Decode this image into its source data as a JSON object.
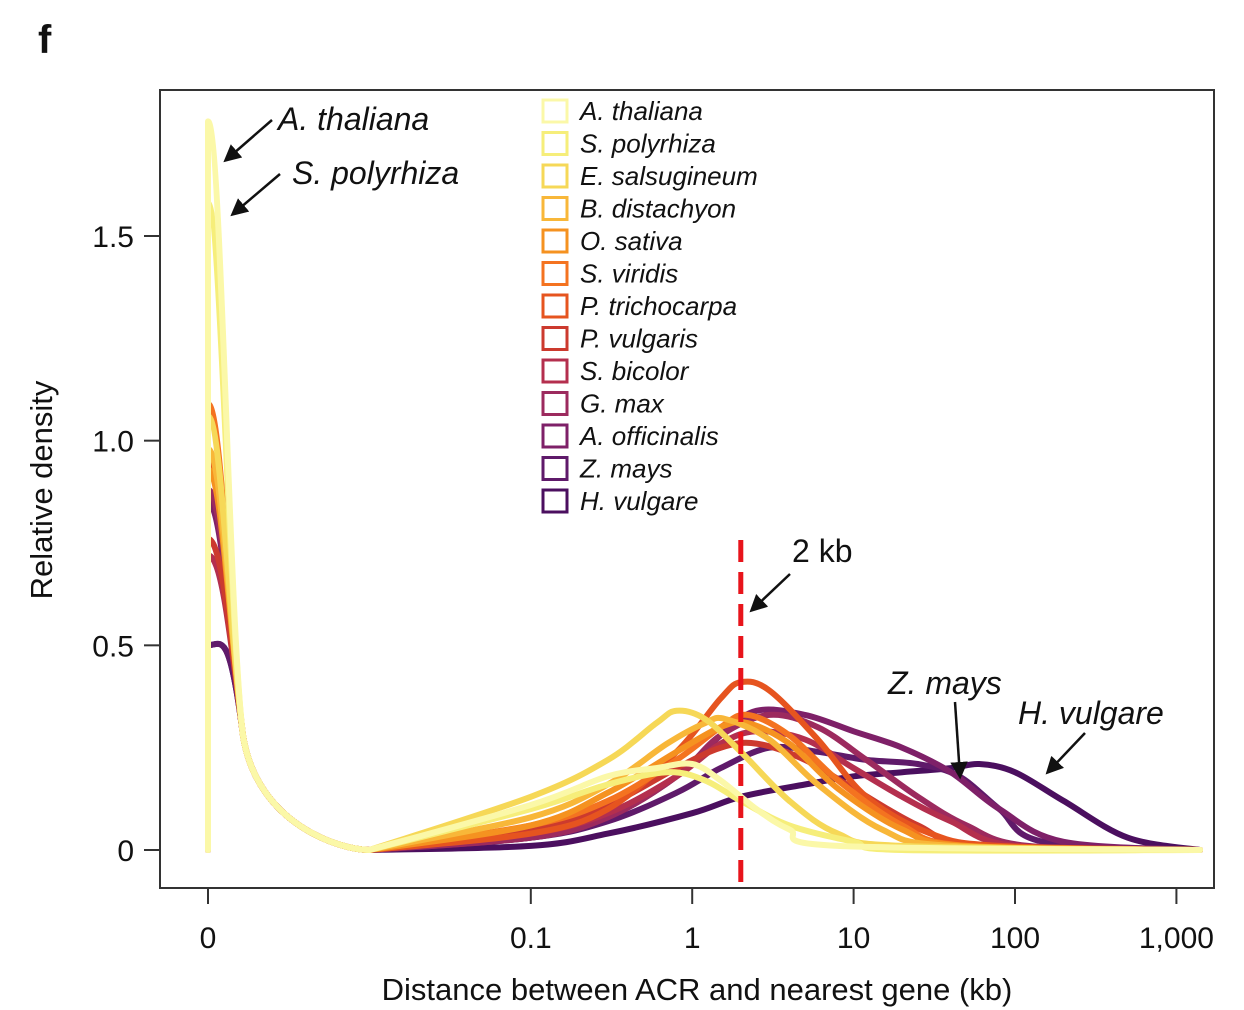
{
  "panel_label": "f",
  "chart_data": {
    "type": "line",
    "title": "",
    "xlabel": "Distance between ACR and nearest gene (kb)",
    "ylabel": "Relative density",
    "x_scale": "log, with 0 shown at left (0.001 kb)",
    "xlim": [
      0.001,
      1400
    ],
    "ylim": [
      -0.08,
      1.86
    ],
    "x_ticks": [
      {
        "value": 0.001,
        "label": "0"
      },
      {
        "value": 0.1,
        "label": "0.1"
      },
      {
        "value": 1,
        "label": "1"
      },
      {
        "value": 10,
        "label": "10"
      },
      {
        "value": 100,
        "label": "100"
      },
      {
        "value": 1000,
        "label": "1,000"
      }
    ],
    "y_ticks": [
      {
        "value": 0,
        "label": "0"
      },
      {
        "value": 0.5,
        "label": "0.5"
      },
      {
        "value": 1.0,
        "label": "1.0"
      },
      {
        "value": 1.5,
        "label": "1.5"
      }
    ],
    "grid": false,
    "legend_position": "top-center",
    "series": [
      {
        "name": "A. thaliana",
        "color": "#fbf8a8",
        "peak0": 1.78,
        "x": [
          0.001,
          0.01,
          0.1,
          0.3,
          0.6,
          1.0,
          1.5,
          2.5,
          4,
          8,
          1400
        ],
        "y": [
          1.78,
          0.0,
          0.11,
          0.18,
          0.2,
          0.21,
          0.17,
          0.1,
          0.05,
          0.01,
          0
        ]
      },
      {
        "name": "S. polyrhiza",
        "color": "#f6ee7a",
        "peak0": 1.58,
        "x": [
          0.001,
          0.01,
          0.1,
          0.3,
          0.7,
          1.2,
          2,
          4,
          10,
          20,
          1400
        ],
        "y": [
          1.58,
          0.0,
          0.1,
          0.16,
          0.19,
          0.17,
          0.12,
          0.06,
          0.02,
          0,
          0
        ]
      },
      {
        "name": "E. salsugineum",
        "color": "#f6d857",
        "peak0": 1.06,
        "x": [
          0.001,
          0.01,
          0.1,
          0.3,
          0.6,
          0.8,
          1.2,
          2,
          4,
          8,
          20,
          1400
        ],
        "y": [
          1.06,
          0.0,
          0.13,
          0.22,
          0.31,
          0.34,
          0.32,
          0.24,
          0.12,
          0.04,
          0.01,
          0
        ]
      },
      {
        "name": "B. distachyon",
        "color": "#f8b739",
        "peak0": 0.98,
        "x": [
          0.001,
          0.01,
          0.1,
          0.3,
          0.7,
          1.2,
          1.6,
          3,
          6,
          15,
          40,
          1400
        ],
        "y": [
          0.98,
          0.0,
          0.08,
          0.16,
          0.26,
          0.31,
          0.32,
          0.27,
          0.16,
          0.05,
          0.01,
          0
        ]
      },
      {
        "name": "O. sativa",
        "color": "#f59220",
        "peak0": 0.93,
        "x": [
          0.001,
          0.01,
          0.1,
          0.3,
          0.8,
          1.5,
          2.2,
          4,
          8,
          20,
          50,
          1400
        ],
        "y": [
          0.93,
          0.0,
          0.06,
          0.14,
          0.24,
          0.3,
          0.31,
          0.26,
          0.15,
          0.05,
          0.01,
          0
        ]
      },
      {
        "name": "S. viridis",
        "color": "#f47320",
        "peak0": 1.09,
        "x": [
          0.001,
          0.01,
          0.1,
          0.3,
          0.8,
          1.5,
          2.2,
          4,
          8,
          20,
          50,
          1400
        ],
        "y": [
          1.09,
          0.0,
          0.06,
          0.12,
          0.22,
          0.3,
          0.33,
          0.28,
          0.17,
          0.06,
          0.01,
          0
        ]
      },
      {
        "name": "P. trichocarpa",
        "color": "#e6541f",
        "peak0": 0.95,
        "x": [
          0.001,
          0.01,
          0.1,
          0.3,
          0.8,
          1.5,
          2.0,
          3,
          6,
          12,
          30,
          80,
          1400
        ],
        "y": [
          0.95,
          0.0,
          0.04,
          0.1,
          0.24,
          0.37,
          0.41,
          0.39,
          0.27,
          0.13,
          0.04,
          0.01,
          0
        ]
      },
      {
        "name": "P. vulgaris",
        "color": "#cc3a2e",
        "peak0": 0.76,
        "x": [
          0.001,
          0.01,
          0.1,
          0.3,
          0.8,
          1.5,
          2.5,
          5,
          10,
          25,
          60,
          1400
        ],
        "y": [
          0.76,
          0.0,
          0.05,
          0.11,
          0.2,
          0.25,
          0.26,
          0.22,
          0.15,
          0.06,
          0.01,
          0
        ]
      },
      {
        "name": "S. bicolor",
        "color": "#b42f4e",
        "peak0": 0.72,
        "x": [
          0.001,
          0.01,
          0.1,
          0.3,
          0.8,
          1.5,
          2.5,
          5,
          10,
          20,
          40,
          100,
          1400
        ],
        "y": [
          0.72,
          0.0,
          0.04,
          0.09,
          0.18,
          0.26,
          0.29,
          0.27,
          0.2,
          0.13,
          0.07,
          0.01,
          0
        ]
      },
      {
        "name": "G. max",
        "color": "#9c2a5e",
        "peak0": 0.88,
        "x": [
          0.001,
          0.01,
          0.1,
          0.3,
          0.8,
          1.5,
          3,
          6,
          12,
          25,
          50,
          120,
          1400
        ],
        "y": [
          0.88,
          0.0,
          0.03,
          0.08,
          0.18,
          0.28,
          0.33,
          0.3,
          0.22,
          0.13,
          0.06,
          0.01,
          0
        ]
      },
      {
        "name": "A. officinalis",
        "color": "#7e2068",
        "peak0": 0.85,
        "x": [
          0.001,
          0.01,
          0.1,
          0.3,
          0.8,
          1.5,
          2.5,
          5,
          10,
          20,
          40,
          80,
          200,
          1400
        ],
        "y": [
          0.85,
          0.0,
          0.03,
          0.08,
          0.18,
          0.28,
          0.34,
          0.33,
          0.29,
          0.25,
          0.19,
          0.1,
          0.02,
          0
        ]
      },
      {
        "name": "Z. mays",
        "color": "#5f1a6a",
        "peak0": 0.5,
        "x": [
          0.001,
          0.01,
          0.1,
          0.3,
          0.8,
          1.5,
          3,
          6,
          12,
          25,
          45,
          80,
          150,
          1400
        ],
        "y": [
          0.5,
          0.0,
          0.03,
          0.07,
          0.14,
          0.2,
          0.25,
          0.24,
          0.22,
          0.21,
          0.18,
          0.1,
          0.02,
          0
        ]
      },
      {
        "name": "H. vulgare",
        "color": "#4b0f5f",
        "peak0": 0.5,
        "x": [
          0.001,
          0.01,
          0.1,
          0.3,
          1,
          2,
          5,
          10,
          20,
          40,
          60,
          100,
          200,
          500,
          1400
        ],
        "y": [
          0.5,
          0.0,
          0.01,
          0.04,
          0.09,
          0.13,
          0.16,
          0.18,
          0.19,
          0.2,
          0.21,
          0.19,
          0.12,
          0.03,
          0
        ]
      }
    ],
    "reference_line": {
      "x": 2,
      "label": "2 kb",
      "color": "#e8141b"
    },
    "annotations": [
      "A. thaliana",
      "S. polyrhiza",
      "Z. mays",
      "H. vulgare"
    ]
  }
}
